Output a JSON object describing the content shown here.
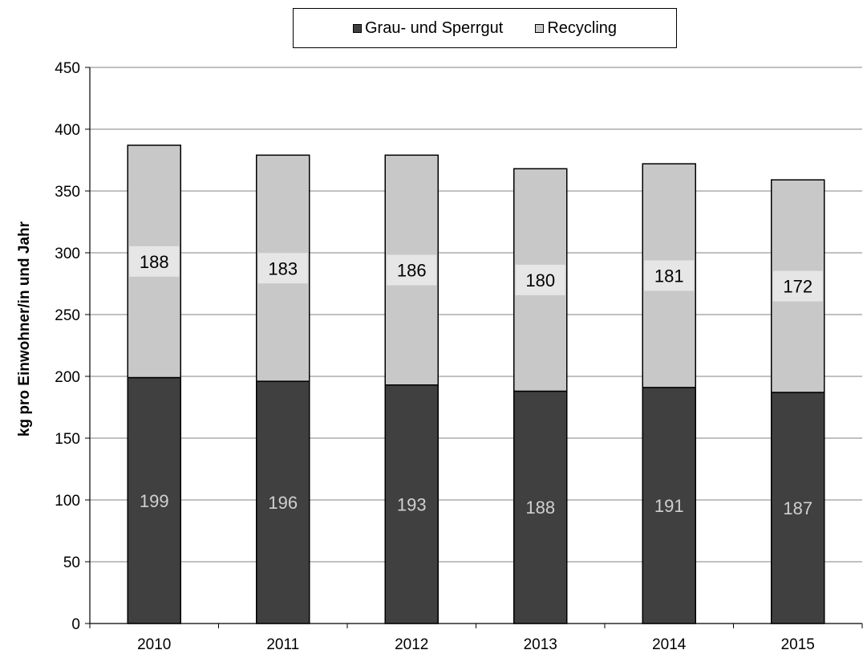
{
  "chart_data": {
    "type": "bar",
    "stacked": true,
    "categories": [
      "2010",
      "2011",
      "2012",
      "2013",
      "2014",
      "2015"
    ],
    "series": [
      {
        "name": "Grau- und Sperrgut",
        "values": [
          199,
          196,
          193,
          188,
          191,
          187
        ],
        "color": "#404040"
      },
      {
        "name": "Recycling",
        "values": [
          188,
          183,
          186,
          180,
          181,
          172
        ],
        "color": "#c8c8c8"
      }
    ],
    "ylabel": "kg pro Einwohner/in und Jahr",
    "xlabel": "",
    "ylim": [
      0,
      450
    ],
    "yticks": [
      0,
      50,
      100,
      150,
      200,
      250,
      300,
      350,
      400,
      450
    ],
    "grid": true,
    "legend_position": "top"
  }
}
